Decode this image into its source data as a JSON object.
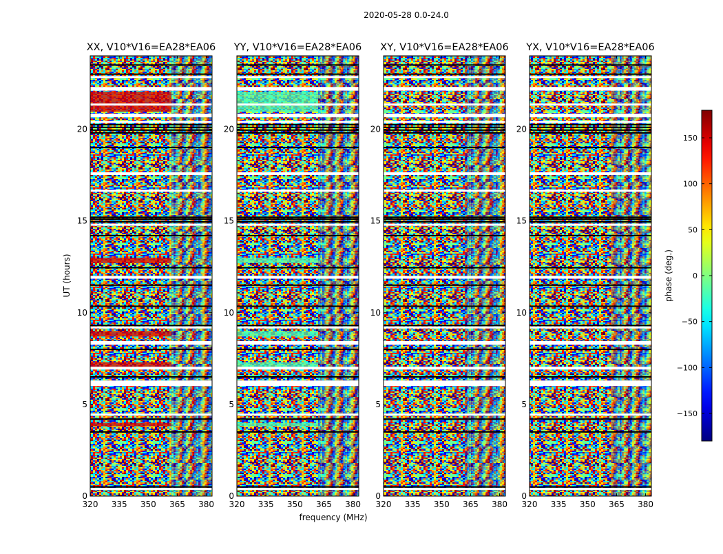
{
  "suptitle": "2020-05-28 0.0-24.0",
  "xlabel": "frequency (MHz)",
  "ylabel": "UT (hours)",
  "colorbar": {
    "label": "phase (deg.)",
    "range": [
      -180,
      180
    ],
    "ticks": [
      150,
      100,
      50,
      0,
      -50,
      -100,
      -150
    ],
    "tick_labels": [
      "150",
      "100",
      "50",
      "0",
      "−50",
      "−100",
      "−150"
    ],
    "colormap": "jet"
  },
  "chart_data": {
    "type": "heatmap",
    "xlim": [
      320,
      383
    ],
    "ylim": [
      0,
      24
    ],
    "xticks": [
      320,
      335,
      350,
      365,
      380
    ],
    "xtick_labels": [
      "320",
      "335",
      "350",
      "365",
      "380"
    ],
    "yticks": [
      0,
      5,
      10,
      15,
      20
    ],
    "ytick_labels": [
      "0",
      "5",
      "10",
      "15",
      "20"
    ],
    "value_range": [
      -180,
      180
    ],
    "panels": [
      {
        "title": "XX, V10*V16=EA28*EA06",
        "bias_phase": 150
      },
      {
        "title": "YY, V10*V16=EA28*EA06",
        "bias_phase": -20
      },
      {
        "title": "XY, V10*V16=EA28*EA06",
        "bias_phase": null
      },
      {
        "title": "YX, V10*V16=EA28*EA06",
        "bias_phase": null
      }
    ],
    "flagged_ut_intervals": [
      [
        0.35,
        0.45
      ],
      [
        4.45,
        4.5
      ],
      [
        6.0,
        6.3
      ],
      [
        6.9,
        7.05
      ],
      [
        8.25,
        8.45
      ],
      [
        9.15,
        9.25
      ],
      [
        11.85,
        12.0
      ],
      [
        14.75,
        14.85
      ],
      [
        16.6,
        16.7
      ],
      [
        17.5,
        17.65
      ],
      [
        20.35,
        20.45
      ],
      [
        20.65,
        20.85
      ],
      [
        21.3,
        21.4
      ],
      [
        22.1,
        22.3
      ],
      [
        22.8,
        22.9
      ]
    ],
    "black_ut_lines": [
      0.5,
      3.5,
      4.2,
      6.5,
      8.0,
      9.3,
      10.35,
      11.5,
      12.45,
      14.2,
      14.95,
      15.1,
      15.2,
      19.0,
      19.8,
      19.95,
      20.1,
      20.25,
      23.0,
      23.5
    ]
  }
}
